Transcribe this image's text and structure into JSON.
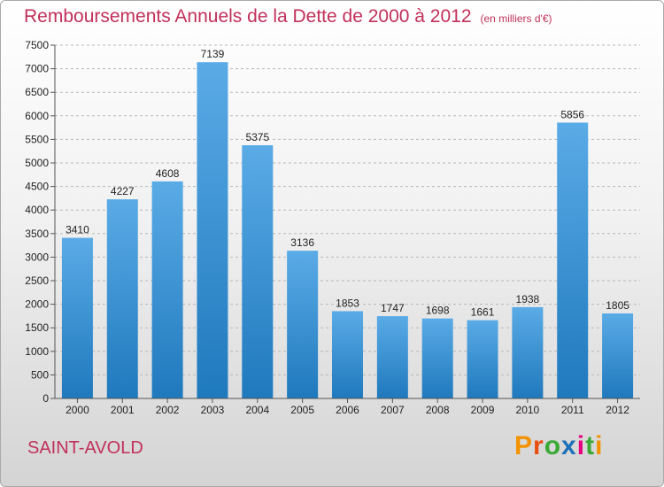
{
  "title": "Remboursements Annuels de la Dette de 2000 à 2012",
  "unit": "(en milliers d'€)",
  "city": "SAINT-AVOLD",
  "logo": {
    "text": "Proxiti",
    "colors": [
      "#f39200",
      "#e84e0f",
      "#3aa935",
      "#1d71b8",
      "#e6007e",
      "#3aa935",
      "#f39200"
    ]
  },
  "colors": {
    "accent": "#c1305a",
    "bar_top": "#5aabe6",
    "bar_bottom": "#1f79bd"
  },
  "chart_data": {
    "type": "bar",
    "title": "Remboursements Annuels de la Dette de 2000 à 2012",
    "categories": [
      "2000",
      "2001",
      "2002",
      "2003",
      "2004",
      "2005",
      "2006",
      "2007",
      "2008",
      "2009",
      "2010",
      "2011",
      "2012"
    ],
    "values": [
      3410,
      4227,
      4608,
      7139,
      5375,
      3136,
      1853,
      1747,
      1698,
      1661,
      1938,
      5856,
      1805
    ],
    "ylim": [
      0,
      7500
    ],
    "yticks": [
      0,
      500,
      1000,
      1500,
      2000,
      2500,
      3000,
      3500,
      4000,
      4500,
      5000,
      5500,
      6000,
      6500,
      7000,
      7500
    ],
    "grid": true,
    "xlabel": "",
    "ylabel": ""
  }
}
